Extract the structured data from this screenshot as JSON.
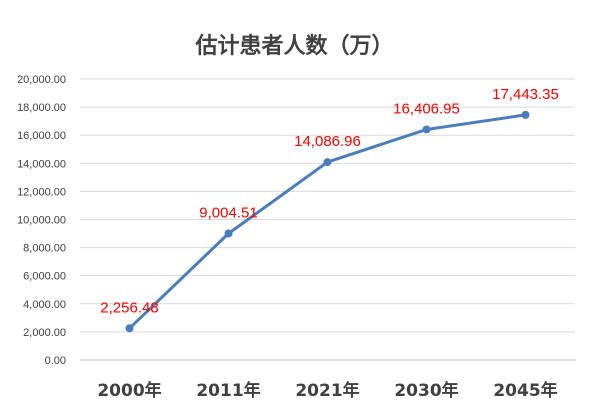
{
  "chart_data": {
    "type": "line",
    "title": "估计患者人数（万）",
    "categories": [
      "2000年",
      "2011年",
      "2021年",
      "2030年",
      "2045年"
    ],
    "values": [
      2256.48,
      9004.51,
      14086.96,
      16406.95,
      17443.35
    ],
    "data_labels": [
      "2,256.48",
      "9,004.51",
      "14,086.96",
      "16,406.95",
      "17,443.35"
    ],
    "y_ticks": [
      "0.00",
      "2,000.00",
      "4,000.00",
      "6,000.00",
      "8,000.00",
      "10,000.00",
      "12,000.00",
      "14,000.00",
      "16,000.00",
      "18,000.00",
      "20,000.00"
    ],
    "ylim": [
      0,
      20000
    ],
    "grid": true,
    "legend": "none",
    "line_color": "#4a7ebb",
    "label_color": "#ff0000",
    "grid_color": "#d9d9d9"
  }
}
